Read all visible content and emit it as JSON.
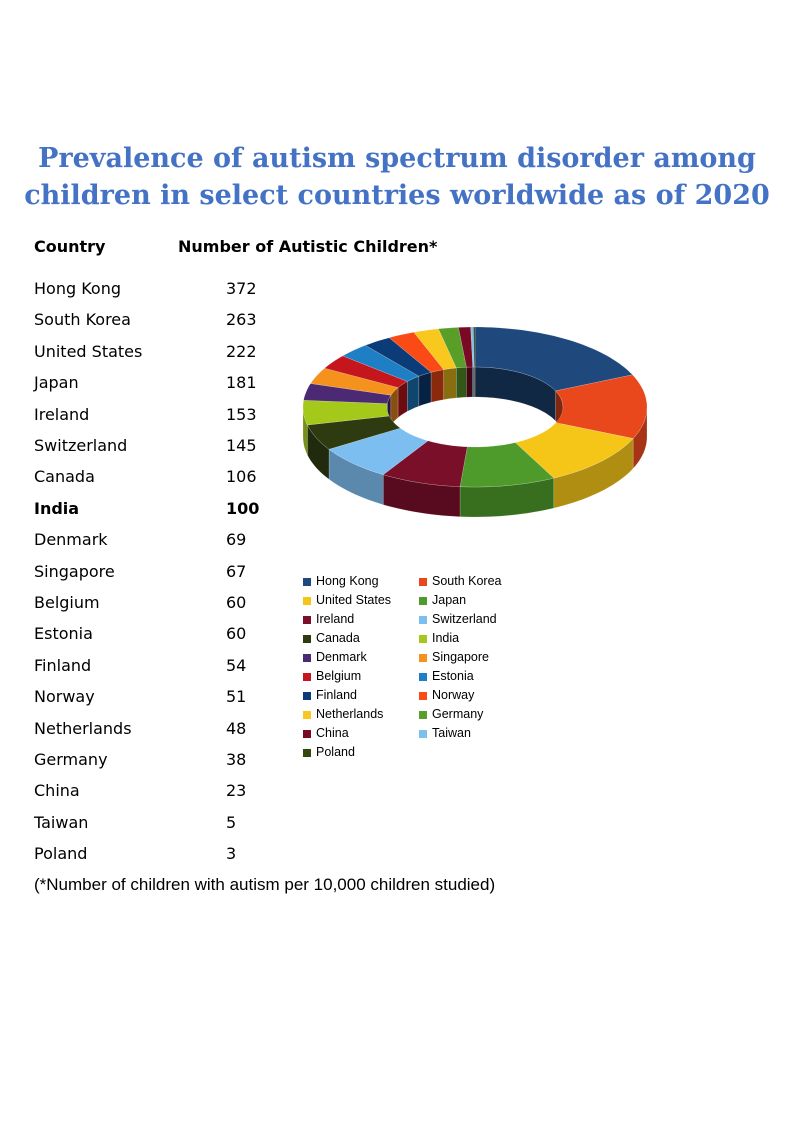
{
  "title": "Prevalence of autism spectrum disorder among children in select countries worldwide as of 2020",
  "table": {
    "header_country": "Country",
    "header_value": "Number of Autistic Children*",
    "highlight": "India"
  },
  "footnote": "(*Number of children with autism per 10,000 children studied)",
  "chart_data": {
    "type": "pie",
    "variant": "3d-donut",
    "legend_position": "bottom-left",
    "categories": [
      "Hong Kong",
      "South Korea",
      "United States",
      "Japan",
      "Ireland",
      "Switzerland",
      "Canada",
      "India",
      "Denmark",
      "Singapore",
      "Belgium",
      "Estonia",
      "Finland",
      "Norway",
      "Netherlands",
      "Germany",
      "China",
      "Taiwan",
      "Poland"
    ],
    "values": [
      372,
      263,
      222,
      181,
      153,
      145,
      106,
      100,
      69,
      67,
      60,
      60,
      54,
      51,
      48,
      38,
      23,
      5,
      3
    ],
    "colors": [
      "#1F497D",
      "#E8481C",
      "#F5C518",
      "#4E9A2A",
      "#7A0F2A",
      "#7DBEF0",
      "#2E3B10",
      "#A4C91A",
      "#4B2A73",
      "#F5921E",
      "#C4161C",
      "#1E7FC4",
      "#0B3C78",
      "#FA4A16",
      "#F9C81F",
      "#5A9E2A",
      "#7A0A24",
      "#7CC0EE",
      "#33470F"
    ]
  }
}
